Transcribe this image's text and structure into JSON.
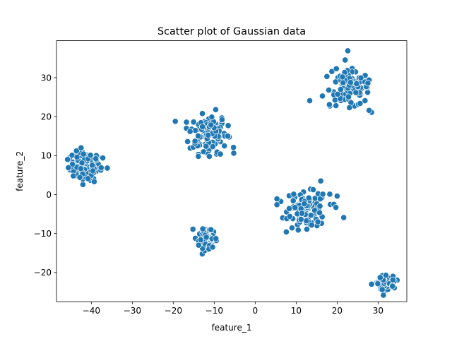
{
  "chart_data": {
    "type": "scatter",
    "title": "Scatter plot of Gaussian data",
    "xlabel": "feature_1",
    "ylabel": "feature_2",
    "xlim": [
      -48.5,
      37
    ],
    "ylim": [
      -27.5,
      39.5
    ],
    "xticks": [
      -40,
      -30,
      -20,
      -10,
      0,
      10,
      20,
      30
    ],
    "yticks": [
      -20,
      -10,
      0,
      10,
      20,
      30
    ],
    "xtick_labels": [
      "−40",
      "−30",
      "−20",
      "−10",
      "0",
      "10",
      "20",
      "30"
    ],
    "ytick_labels": [
      "−20",
      "−10",
      "0",
      "10",
      "20",
      "30"
    ],
    "grid": false,
    "color": "#1f77b4",
    "clusters": [
      {
        "center": [
          -41.5,
          7.3
        ],
        "spread": [
          1.8,
          1.8
        ],
        "n": 100
      },
      {
        "center": [
          -11.5,
          15.8
        ],
        "spread": [
          2.3,
          2.6
        ],
        "n": 100
      },
      {
        "center": [
          -12.0,
          -11.5
        ],
        "spread": [
          0.9,
          1.1
        ],
        "n": 100
      },
      {
        "center": [
          23.0,
          27.0
        ],
        "spread": [
          2.4,
          2.3
        ],
        "n": 100
      },
      {
        "center": [
          12.8,
          -4.0
        ],
        "spread": [
          2.3,
          2.2
        ],
        "n": 100
      },
      {
        "center": [
          31.8,
          -22.6
        ],
        "spread": [
          0.9,
          0.8
        ],
        "n": 100
      }
    ],
    "points": [
      [
        -45.8,
        9.0
      ],
      [
        -45.6,
        6.9
      ],
      [
        -44.7,
        10.1
      ],
      [
        -44.4,
        4.8
      ],
      [
        -43.5,
        9.6
      ],
      [
        -42.5,
        12.0
      ],
      [
        -41.9,
        10.4
      ],
      [
        -40.2,
        10.1
      ],
      [
        -39.3,
        3.3
      ],
      [
        -38.9,
        9.2
      ],
      [
        -37.6,
        6.9
      ],
      [
        -37.2,
        9.4
      ],
      [
        -36.1,
        6.8
      ],
      [
        -40.8,
        4.1
      ],
      [
        -42.8,
        4.4
      ],
      [
        -16.8,
        17.0
      ],
      [
        -15.9,
        16.2
      ],
      [
        -14.7,
        13.7
      ],
      [
        -12.9,
        20.8
      ],
      [
        -12.6,
        11.0
      ],
      [
        -11.5,
        10.4
      ],
      [
        -11.2,
        9.8
      ],
      [
        -10.6,
        19.9
      ],
      [
        -9.3,
        10.9
      ],
      [
        -8.1,
        19.2
      ],
      [
        -7.4,
        15.0
      ],
      [
        -6.7,
        15.0
      ],
      [
        -6.6,
        17.7
      ],
      [
        -5.3,
        12.1
      ],
      [
        -8.5,
        10.4
      ],
      [
        -15.2,
        -8.9
      ],
      [
        -12.8,
        -8.8
      ],
      [
        -11.3,
        -14.0
      ],
      [
        -10.8,
        -9.0
      ],
      [
        -10.4,
        -13.5
      ],
      [
        -13.8,
        -13.0
      ],
      [
        -9.6,
        -11.3
      ],
      [
        13.3,
        24.1
      ],
      [
        16.4,
        25.3
      ],
      [
        17.5,
        30.3
      ],
      [
        18.1,
        23.1
      ],
      [
        18.7,
        31.6
      ],
      [
        19.8,
        32.3
      ],
      [
        21.3,
        30.2
      ],
      [
        22.6,
        36.9
      ],
      [
        23.0,
        22.3
      ],
      [
        25.6,
        23.4
      ],
      [
        26.8,
        24.1
      ],
      [
        27.1,
        27.7
      ],
      [
        27.8,
        29.4
      ],
      [
        27.8,
        21.6
      ],
      [
        27.5,
        28.6
      ],
      [
        5.3,
        -1.1
      ],
      [
        5.3,
        -2.6
      ],
      [
        8.3,
        -0.3
      ],
      [
        9.4,
        0.1
      ],
      [
        10.5,
        -9.1
      ],
      [
        12.6,
        -8.9
      ],
      [
        15.3,
        -7.0
      ],
      [
        16.0,
        3.5
      ],
      [
        16.5,
        0.1
      ],
      [
        18.2,
        0.1
      ],
      [
        19.2,
        -2.5
      ],
      [
        19.7,
        -3.3
      ],
      [
        20.0,
        -0.4
      ],
      [
        21.6,
        -5.9
      ],
      [
        8.3,
        -3.6
      ],
      [
        28.4,
        -23.0
      ],
      [
        30.5,
        -21.3
      ],
      [
        31.9,
        -20.7
      ],
      [
        33.6,
        -21.9
      ],
      [
        33.5,
        -23.5
      ],
      [
        31.0,
        -24.4
      ]
    ]
  }
}
